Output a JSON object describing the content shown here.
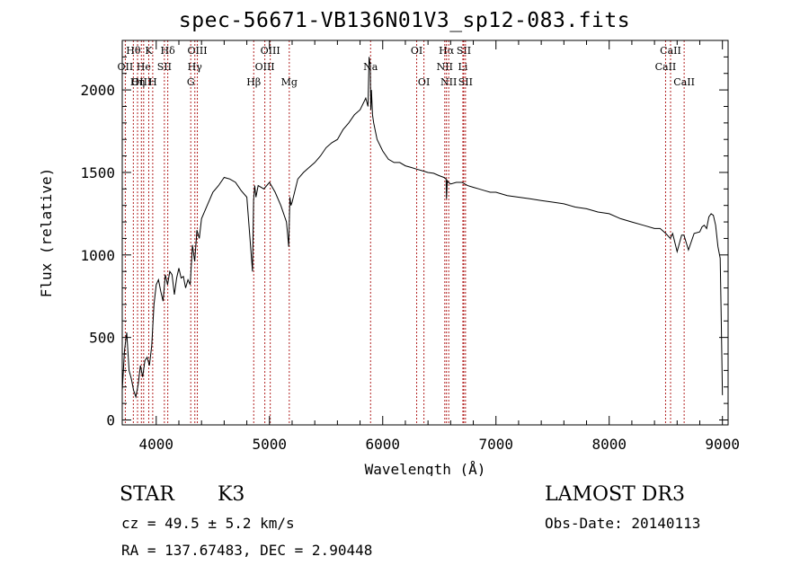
{
  "chart_data": {
    "type": "line",
    "title": "spec-56671-VB136N01V3_sp12-083.fits",
    "xlabel": "Wavelength (Å)",
    "ylabel": "Flux (relative)",
    "xlim": [
      3700,
      9050
    ],
    "ylim": [
      -30,
      2300
    ],
    "xticks": [
      4000,
      5000,
      6000,
      7000,
      8000,
      9000
    ],
    "yticks": [
      0,
      500,
      1000,
      1500,
      2000
    ],
    "series": [
      {
        "name": "flux",
        "x": [
          3700,
          3720,
          3740,
          3760,
          3780,
          3800,
          3820,
          3840,
          3860,
          3880,
          3900,
          3920,
          3940,
          3960,
          3980,
          4000,
          4020,
          4040,
          4060,
          4080,
          4100,
          4120,
          4140,
          4160,
          4180,
          4200,
          4220,
          4240,
          4260,
          4280,
          4300,
          4320,
          4340,
          4360,
          4380,
          4400,
          4450,
          4500,
          4550,
          4600,
          4650,
          4700,
          4750,
          4800,
          4850,
          4860,
          4870,
          4880,
          4900,
          4950,
          5000,
          5050,
          5100,
          5150,
          5170,
          5180,
          5190,
          5200,
          5250,
          5300,
          5350,
          5400,
          5450,
          5500,
          5550,
          5600,
          5650,
          5700,
          5750,
          5800,
          5850,
          5870,
          5880,
          5890,
          5895,
          5900,
          5910,
          5920,
          5950,
          6000,
          6050,
          6100,
          6150,
          6200,
          6250,
          6300,
          6350,
          6400,
          6450,
          6500,
          6540,
          6560,
          6563,
          6570,
          6580,
          6600,
          6650,
          6700,
          6750,
          6800,
          6850,
          6900,
          6950,
          7000,
          7100,
          7200,
          7300,
          7400,
          7500,
          7600,
          7700,
          7800,
          7900,
          8000,
          8100,
          8200,
          8300,
          8400,
          8450,
          8500,
          8540,
          8560,
          8600,
          8640,
          8660,
          8700,
          8750,
          8800,
          8820,
          8840,
          8860,
          8880,
          8900,
          8920,
          8940,
          8960,
          8980,
          8990,
          9000
        ],
        "values": [
          180,
          420,
          530,
          300,
          250,
          180,
          140,
          210,
          330,
          260,
          360,
          380,
          330,
          450,
          700,
          820,
          850,
          780,
          720,
          880,
          820,
          900,
          880,
          760,
          860,
          920,
          860,
          870,
          800,
          850,
          820,
          1060,
          960,
          1150,
          1100,
          1220,
          1300,
          1380,
          1420,
          1470,
          1460,
          1440,
          1390,
          1350,
          900,
          1330,
          1420,
          1350,
          1420,
          1400,
          1440,
          1380,
          1300,
          1200,
          1050,
          1350,
          1300,
          1320,
          1460,
          1500,
          1530,
          1560,
          1600,
          1650,
          1680,
          1700,
          1760,
          1800,
          1850,
          1880,
          1950,
          1900,
          2200,
          2150,
          1880,
          2000,
          1850,
          1800,
          1700,
          1630,
          1580,
          1560,
          1560,
          1540,
          1530,
          1520,
          1510,
          1500,
          1495,
          1480,
          1470,
          1460,
          1340,
          1450,
          1440,
          1430,
          1440,
          1440,
          1420,
          1410,
          1400,
          1390,
          1380,
          1380,
          1360,
          1350,
          1340,
          1330,
          1320,
          1310,
          1290,
          1280,
          1260,
          1250,
          1220,
          1200,
          1180,
          1160,
          1160,
          1130,
          1100,
          1130,
          1020,
          1120,
          1120,
          1030,
          1130,
          1140,
          1170,
          1180,
          1160,
          1230,
          1250,
          1240,
          1180,
          1050,
          980,
          600,
          150
        ]
      }
    ],
    "lines": [
      {
        "label": "Hθ",
        "wl": 3798,
        "row": 0
      },
      {
        "label": "OII",
        "wl": 3727,
        "row": 1
      },
      {
        "label": "OIII",
        "wl": 3869,
        "row": 2
      },
      {
        "label": "He",
        "wl": 3889,
        "row": 1
      },
      {
        "label": "K",
        "wl": 3934,
        "row": 0
      },
      {
        "label": "Hη",
        "wl": 3835,
        "row": 2
      },
      {
        "label": "H",
        "wl": 3969,
        "row": 2
      },
      {
        "label": "SII",
        "wl": 4072,
        "row": 1
      },
      {
        "label": "Hδ",
        "wl": 4102,
        "row": 0
      },
      {
        "label": "OIII",
        "wl": 4363,
        "row": 0
      },
      {
        "label": "Hγ",
        "wl": 4341,
        "row": 1
      },
      {
        "label": "G",
        "wl": 4305,
        "row": 2
      },
      {
        "label": "OIII",
        "wl": 5007,
        "row": 0
      },
      {
        "label": "OIII",
        "wl": 4959,
        "row": 1
      },
      {
        "label": "Hβ",
        "wl": 4861,
        "row": 2
      },
      {
        "label": "Mg",
        "wl": 5175,
        "row": 2
      },
      {
        "label": "Na",
        "wl": 5893,
        "row": 1
      },
      {
        "label": "OI",
        "wl": 6300,
        "row": 0
      },
      {
        "label": "OI",
        "wl": 6364,
        "row": 2
      },
      {
        "label": "Hα",
        "wl": 6563,
        "row": 0
      },
      {
        "label": "SII",
        "wl": 6716,
        "row": 0
      },
      {
        "label": "NII",
        "wl": 6548,
        "row": 1
      },
      {
        "label": "Li",
        "wl": 6708,
        "row": 1
      },
      {
        "label": "NII",
        "wl": 6583,
        "row": 2
      },
      {
        "label": "SII",
        "wl": 6731,
        "row": 2
      },
      {
        "label": "CaII",
        "wl": 8542,
        "row": 0
      },
      {
        "label": "CaII",
        "wl": 8498,
        "row": 1
      },
      {
        "label": "CaII",
        "wl": 8662,
        "row": 2
      }
    ]
  },
  "info": {
    "object_class": "STAR",
    "subclass": "K3",
    "survey": "LAMOST DR3",
    "cz": "cz = 49.5 ± 5.2 km/s",
    "obs_date": "Obs-Date: 20140113",
    "radec": "RA = 137.67483, DEC =    2.90448"
  },
  "colors": {
    "line_marker": "#b22222",
    "spectrum": "#000000",
    "axes": "#000000"
  }
}
